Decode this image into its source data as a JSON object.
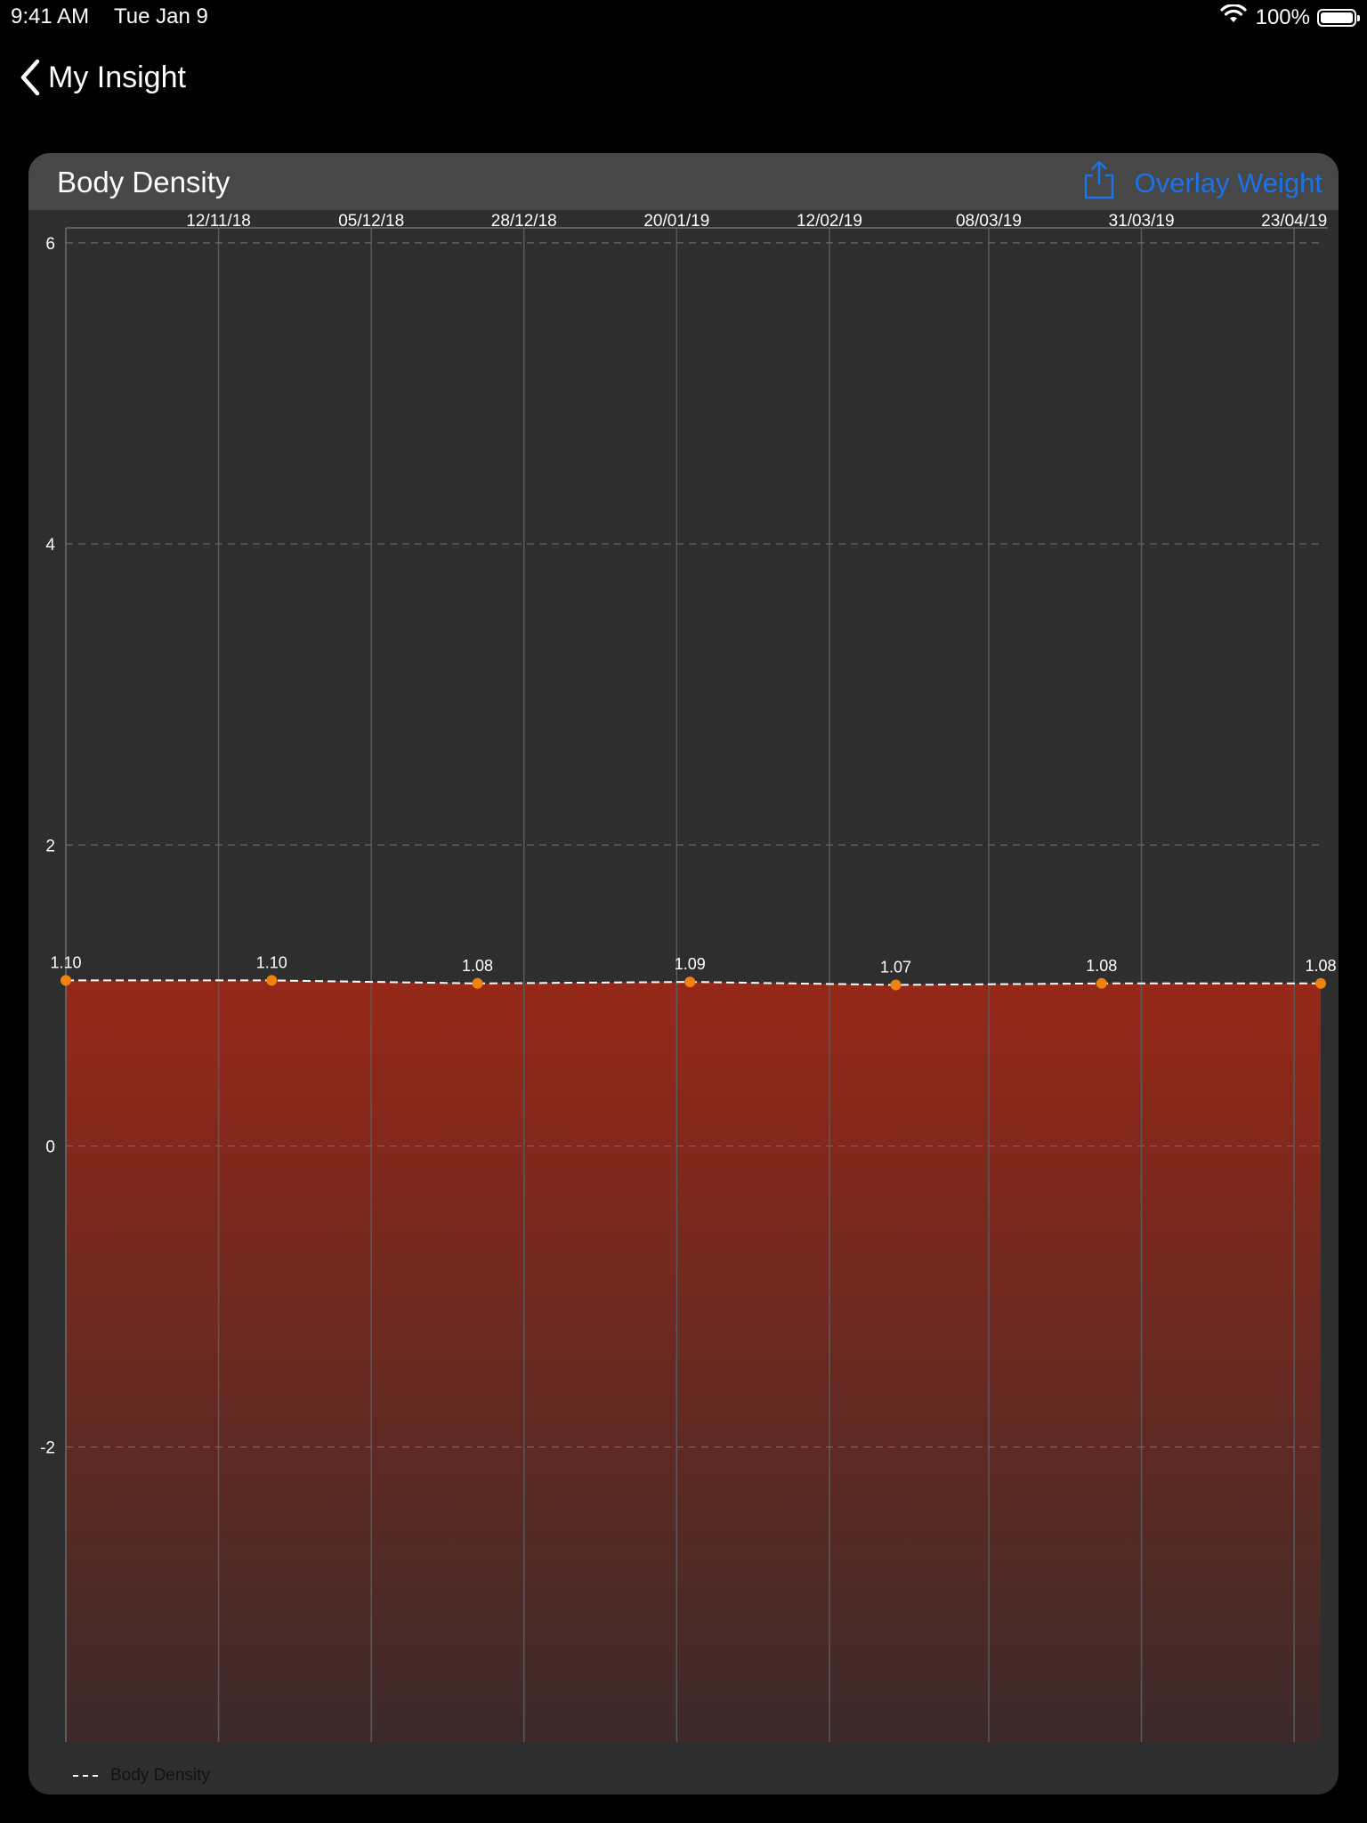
{
  "status_bar": {
    "time": "9:41 AM",
    "date": "Tue Jan 9",
    "battery": "100%"
  },
  "nav": {
    "back_label": "My Insight"
  },
  "card": {
    "title": "Body Density",
    "overlay_button": "Overlay Weight"
  },
  "colors": {
    "accent": "#1a73e8",
    "line": "#ffffff",
    "point": "#f0820f",
    "fill_top": "#962818",
    "fill_bottom": "#3c2a2a",
    "grid_vertical": "#5a5a5a",
    "grid_horizontal": "#6a6a6a"
  },
  "chart_data": {
    "type": "area",
    "x_axis_labels": [
      "12/11/18",
      "05/12/18",
      "28/12/18",
      "20/01/19",
      "12/02/19",
      "08/03/19",
      "31/03/19",
      "23/04/19"
    ],
    "ylim": [
      -3.96,
      6.1
    ],
    "yticks": [
      6,
      4,
      2,
      0,
      -2
    ],
    "grid": true,
    "legend_position": "bottom-left",
    "series": [
      {
        "name": "Body Density",
        "style": "dashed",
        "points": [
          {
            "x": "2018-10-20",
            "y": 1.1,
            "label": "1.10"
          },
          {
            "x": "2018-11-20",
            "y": 1.1,
            "label": "1.10"
          },
          {
            "x": "2018-12-21",
            "y": 1.08,
            "label": "1.08"
          },
          {
            "x": "2019-01-22",
            "y": 1.09,
            "label": "1.09"
          },
          {
            "x": "2019-02-22",
            "y": 1.07,
            "label": "1.07"
          },
          {
            "x": "2019-03-25",
            "y": 1.08,
            "label": "1.08"
          },
          {
            "x": "2019-04-27",
            "y": 1.08,
            "label": "1.08"
          }
        ]
      }
    ]
  }
}
